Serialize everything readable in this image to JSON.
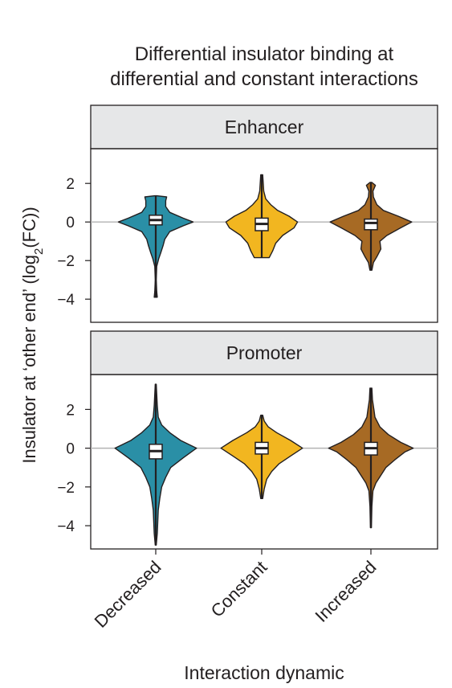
{
  "chart_data": {
    "type": "violin",
    "title_lines": [
      "Differential insulator binding at",
      "differential and constant interactions"
    ],
    "xlabel": "Interaction dynamic",
    "ylabel_parts": [
      "Insulator at ‘other end’ (log",
      "2",
      "(FC))"
    ],
    "categories": [
      "Decreased",
      "Constant",
      "Increased"
    ],
    "colors": {
      "Decreased": "#2a8fa6",
      "Constant": "#f2b620",
      "Increased": "#a76a24"
    },
    "ylim": [
      -5.2,
      3.8
    ],
    "yticks": [
      -4,
      -2,
      0,
      2
    ],
    "ytick_labels": [
      "−4",
      "−2",
      "0",
      "2"
    ],
    "reference_line": 0,
    "panels": [
      {
        "name": "Enhancer",
        "violins": [
          {
            "category": "Decreased",
            "median": 0.1,
            "q1": -0.15,
            "q3": 0.35,
            "whisker_low": -3.9,
            "whisker_high": 1.35,
            "profile": [
              [
                -3.9,
                0.03
              ],
              [
                -3.6,
                0.02
              ],
              [
                -3.0,
                0.01
              ],
              [
                -2.3,
                0.02
              ],
              [
                -1.9,
                0.06
              ],
              [
                -1.6,
                0.1
              ],
              [
                -1.2,
                0.15
              ],
              [
                -0.9,
                0.18
              ],
              [
                -0.5,
                0.28
              ],
              [
                -0.2,
                0.55
              ],
              [
                0.0,
                0.75
              ],
              [
                0.2,
                0.55
              ],
              [
                0.5,
                0.28
              ],
              [
                0.8,
                0.2
              ],
              [
                1.1,
                0.2
              ],
              [
                1.3,
                0.22
              ],
              [
                1.36,
                0.02
              ]
            ]
          },
          {
            "category": "Constant",
            "median": -0.1,
            "q1": -0.45,
            "q3": 0.2,
            "whisker_low": -1.85,
            "whisker_high": 2.45,
            "profile": [
              [
                -1.85,
                0.15
              ],
              [
                -1.5,
                0.22
              ],
              [
                -1.1,
                0.28
              ],
              [
                -0.7,
                0.42
              ],
              [
                -0.3,
                0.65
              ],
              [
                0.0,
                0.72
              ],
              [
                0.3,
                0.55
              ],
              [
                0.6,
                0.32
              ],
              [
                0.9,
                0.18
              ],
              [
                1.2,
                0.08
              ],
              [
                1.6,
                0.04
              ],
              [
                2.0,
                0.03
              ],
              [
                2.45,
                0.02
              ]
            ]
          },
          {
            "category": "Increased",
            "median": -0.05,
            "q1": -0.4,
            "q3": 0.15,
            "whisker_low": -2.5,
            "whisker_high": 2.05,
            "profile": [
              [
                -2.5,
                0.02
              ],
              [
                -2.1,
                0.05
              ],
              [
                -1.8,
                0.12
              ],
              [
                -1.4,
                0.2
              ],
              [
                -1.0,
                0.18
              ],
              [
                -0.7,
                0.32
              ],
              [
                -0.3,
                0.6
              ],
              [
                0.0,
                0.82
              ],
              [
                0.3,
                0.55
              ],
              [
                0.6,
                0.25
              ],
              [
                0.9,
                0.12
              ],
              [
                1.3,
                0.05
              ],
              [
                1.6,
                0.04
              ],
              [
                1.9,
                0.09
              ],
              [
                2.05,
                0.02
              ]
            ]
          }
        ]
      },
      {
        "name": "Promoter",
        "violins": [
          {
            "category": "Decreased",
            "median": -0.15,
            "q1": -0.55,
            "q3": 0.2,
            "whisker_low": -5.0,
            "whisker_high": 3.3,
            "profile": [
              [
                -5.0,
                0.01
              ],
              [
                -4.4,
                0.03
              ],
              [
                -3.8,
                0.04
              ],
              [
                -3.2,
                0.05
              ],
              [
                -2.6,
                0.08
              ],
              [
                -2.0,
                0.12
              ],
              [
                -1.5,
                0.2
              ],
              [
                -1.0,
                0.3
              ],
              [
                -0.5,
                0.55
              ],
              [
                0.0,
                0.82
              ],
              [
                0.4,
                0.5
              ],
              [
                0.8,
                0.28
              ],
              [
                1.2,
                0.12
              ],
              [
                1.6,
                0.05
              ],
              [
                2.2,
                0.03
              ],
              [
                2.8,
                0.02
              ],
              [
                3.3,
                0.01
              ]
            ]
          },
          {
            "category": "Constant",
            "median": 0.0,
            "q1": -0.3,
            "q3": 0.3,
            "whisker_low": -2.6,
            "whisker_high": 1.7,
            "profile": [
              [
                -2.6,
                0.02
              ],
              [
                -2.1,
                0.05
              ],
              [
                -1.6,
                0.1
              ],
              [
                -1.2,
                0.2
              ],
              [
                -0.8,
                0.35
              ],
              [
                -0.4,
                0.58
              ],
              [
                0.0,
                0.82
              ],
              [
                0.4,
                0.58
              ],
              [
                0.8,
                0.3
              ],
              [
                1.1,
                0.13
              ],
              [
                1.4,
                0.05
              ],
              [
                1.7,
                0.02
              ]
            ]
          },
          {
            "category": "Increased",
            "median": 0.0,
            "q1": -0.35,
            "q3": 0.3,
            "whisker_low": -4.1,
            "whisker_high": 3.1,
            "profile": [
              [
                -4.1,
                0.01
              ],
              [
                -3.0,
                0.02
              ],
              [
                -2.2,
                0.04
              ],
              [
                -1.8,
                0.1
              ],
              [
                -1.4,
                0.2
              ],
              [
                -1.0,
                0.3
              ],
              [
                -0.6,
                0.48
              ],
              [
                -0.2,
                0.68
              ],
              [
                0.0,
                0.85
              ],
              [
                0.3,
                0.6
              ],
              [
                0.7,
                0.35
              ],
              [
                1.1,
                0.18
              ],
              [
                1.6,
                0.08
              ],
              [
                2.0,
                0.06
              ],
              [
                2.5,
                0.03
              ],
              [
                3.1,
                0.02
              ]
            ]
          }
        ]
      }
    ]
  }
}
